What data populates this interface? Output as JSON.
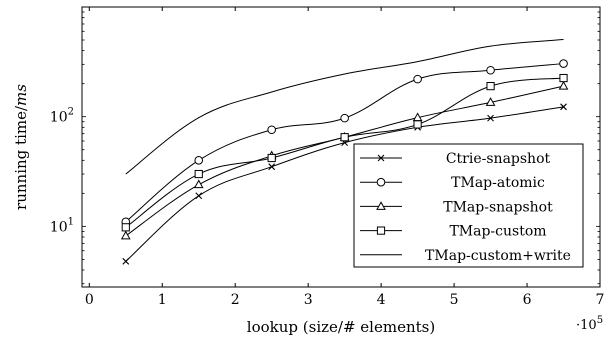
{
  "chart_data": {
    "type": "line",
    "xlabel": "lookup (size/# elements)",
    "ylabel": "running time/ms",
    "x_scale_factor_label": "·10^5",
    "yscale": "log",
    "xlim": [
      -0.1,
      7.0
    ],
    "ylim": [
      2.8,
      1000
    ],
    "x_ticks": [
      0,
      1,
      2,
      3,
      4,
      5,
      6,
      7
    ],
    "y_ticks": [
      {
        "value": 10,
        "mantissa": "10",
        "exponent": "1"
      },
      {
        "value": 100,
        "mantissa": "10",
        "exponent": "2"
      }
    ],
    "legend_position": "bottom-right",
    "grid": false,
    "x": [
      0.5,
      1.5,
      2.5,
      3.5,
      4.5,
      5.5,
      6.5
    ],
    "series": [
      {
        "name": "Ctrie-snapshot",
        "marker": "x",
        "values": [
          4.8,
          19,
          35,
          58,
          80,
          97,
          123
        ]
      },
      {
        "name": "TMap-atomic",
        "marker": "circle",
        "values": [
          11,
          40,
          76,
          97,
          220,
          265,
          305
        ]
      },
      {
        "name": "TMap-snapshot",
        "marker": "triangle",
        "values": [
          8.2,
          24,
          44,
          65,
          98,
          135,
          190
        ]
      },
      {
        "name": "TMap-custom",
        "marker": "square",
        "values": [
          9.8,
          30,
          42,
          65,
          85,
          190,
          225
        ]
      },
      {
        "name": "TMap-custom+write",
        "marker": "none",
        "values": [
          30,
          98,
          168,
          245,
          318,
          440,
          505
        ]
      }
    ]
  }
}
